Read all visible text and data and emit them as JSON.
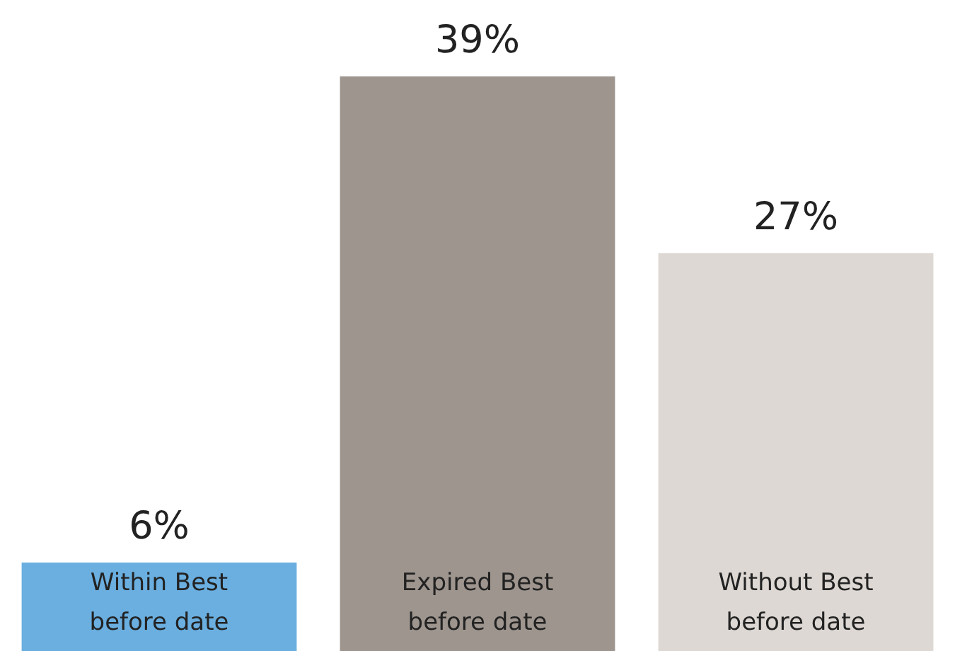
{
  "chart_data": {
    "type": "bar",
    "categories": [
      "Within Best\nbefore date",
      "Expired Best\nbefore date",
      "Without Best\nbefore date"
    ],
    "values": [
      6,
      39,
      27
    ],
    "colors": [
      "#6aafe0",
      "#9e958e",
      "#ddd8d3"
    ],
    "value_labels": [
      "6%",
      "39%",
      "27%"
    ]
  }
}
